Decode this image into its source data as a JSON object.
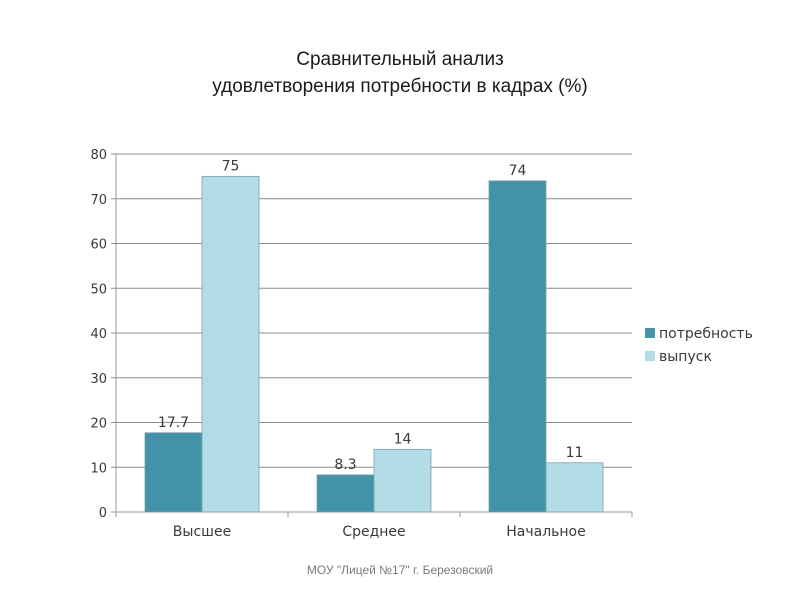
{
  "chart_data": {
    "type": "bar",
    "title": [
      "Сравнительный анализ",
      "удовлетворения потребности в кадрах (%)"
    ],
    "categories": [
      "Высшее",
      "Среднее",
      "Начальное"
    ],
    "series": [
      {
        "name": "потребность",
        "color": "#4393a8",
        "values": [
          17.7,
          8.3,
          74
        ],
        "labels": [
          "17.7",
          "8.3",
          "74"
        ]
      },
      {
        "name": "выпуск",
        "color": "#b2dde6",
        "values": [
          75,
          14,
          11
        ],
        "labels": [
          "75",
          "14",
          "11"
        ]
      }
    ],
    "ylim": [
      0,
      80
    ],
    "yticks": [
      0,
      10,
      20,
      30,
      40,
      50,
      60,
      70,
      80
    ],
    "grid": true,
    "legend": "right"
  },
  "footer": "МОУ \"Лицей №17\" г. Березовский"
}
